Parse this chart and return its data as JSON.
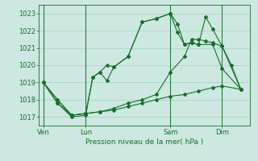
{
  "xlabel": "Pression niveau de la mer( hPa )",
  "ylim": [
    1016.5,
    1023.5
  ],
  "yticks": [
    1017,
    1018,
    1019,
    1020,
    1021,
    1022,
    1023
  ],
  "bg_color": "#cce8e0",
  "grid_color": "#99ccbb",
  "line_color": "#1a6e2e",
  "xtick_labels": [
    "Ven",
    "Lun",
    "Sam",
    "Dim"
  ],
  "xtick_positions": [
    0,
    18,
    54,
    76
  ],
  "vline_positions": [
    0,
    18,
    54,
    76
  ],
  "xlim": [
    -2,
    88
  ],
  "line1_x": [
    0,
    6,
    12,
    18,
    21,
    24,
    27,
    30,
    36,
    42,
    48,
    54,
    57,
    60,
    63,
    66,
    69,
    72,
    76,
    80,
    84
  ],
  "line1_y": [
    1019.0,
    1017.8,
    1017.0,
    1017.1,
    1019.3,
    1019.6,
    1019.1,
    1019.9,
    1020.5,
    1022.5,
    1022.7,
    1023.0,
    1021.9,
    1021.2,
    1021.3,
    1021.2,
    1022.8,
    1022.1,
    1021.1,
    1020.0,
    1018.6
  ],
  "line2_x": [
    0,
    6,
    12,
    18,
    21,
    24,
    27,
    30,
    36,
    42,
    48,
    54,
    57,
    60,
    63,
    66,
    72,
    76,
    84
  ],
  "line2_y": [
    1019.0,
    1017.8,
    1017.1,
    1017.2,
    1019.3,
    1019.6,
    1020.0,
    1019.9,
    1020.5,
    1022.5,
    1022.7,
    1023.0,
    1022.4,
    1021.2,
    1021.3,
    1021.2,
    1021.2,
    1019.8,
    1018.6
  ],
  "line3_x": [
    0,
    6,
    12,
    18,
    24,
    30,
    36,
    42,
    48,
    54,
    60,
    66,
    72,
    76,
    84
  ],
  "line3_y": [
    1019.0,
    1018.0,
    1017.1,
    1017.2,
    1017.3,
    1017.4,
    1017.6,
    1017.8,
    1018.0,
    1018.2,
    1018.3,
    1018.5,
    1018.7,
    1018.8,
    1018.6
  ],
  "line4_x": [
    0,
    6,
    12,
    18,
    24,
    30,
    36,
    42,
    48,
    54,
    60,
    63,
    66,
    69,
    72,
    76,
    84
  ],
  "line4_y": [
    1019.0,
    1018.0,
    1017.1,
    1017.2,
    1017.3,
    1017.5,
    1017.8,
    1018.0,
    1018.3,
    1019.6,
    1020.5,
    1021.5,
    1021.5,
    1021.4,
    1021.3,
    1021.1,
    1018.6
  ]
}
